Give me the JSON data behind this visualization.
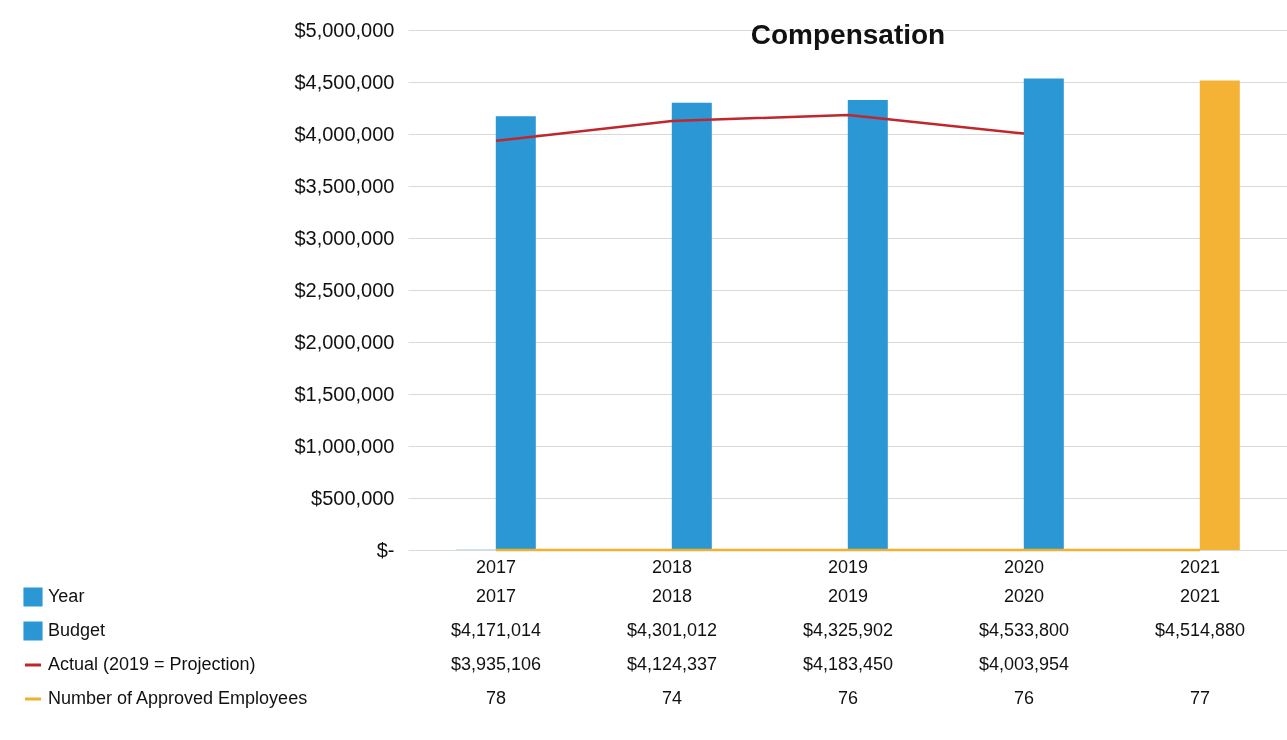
{
  "chart_data": {
    "type": "bar",
    "title": "Compensation",
    "categories": [
      "2017",
      "2018",
      "2019",
      "2020",
      "2021"
    ],
    "series": [
      {
        "name": "Year",
        "color": "#2b97d4",
        "values": [
          2017,
          2018,
          2019,
          2020,
          2021
        ],
        "value_labels": [
          "2017",
          "2018",
          "2019",
          "2020",
          "2021"
        ]
      },
      {
        "name": "Budget",
        "color": "#2b97d4",
        "colors": [
          "#2b97d4",
          "#2b97d4",
          "#2b97d4",
          "#2b97d4",
          "#f5b335"
        ],
        "values": [
          4171014,
          4301012,
          4325902,
          4533800,
          4514880
        ],
        "value_labels": [
          "$4,171,014",
          "$4,301,012",
          "$4,325,902",
          "$4,533,800",
          "$4,514,880"
        ]
      },
      {
        "name": "Actual (2019 = Projection)",
        "type": "line",
        "color": "#c0272d",
        "values": [
          3935106,
          4124337,
          4183450,
          4003954,
          null
        ],
        "value_labels": [
          "$3,935,106",
          "$4,124,337",
          "$4,183,450",
          "$4,003,954",
          null
        ]
      },
      {
        "name": "Number of Approved Employees",
        "type": "line",
        "color": "#f0b030",
        "values": [
          78,
          74,
          76,
          76,
          77
        ],
        "value_labels": [
          "78",
          "74",
          "76",
          "76",
          "77"
        ]
      }
    ],
    "ylim": [
      0,
      5000000
    ],
    "yticks": [
      {
        "value": 0,
        "label": "$-"
      },
      {
        "value": 500000,
        "label": "$500,000"
      },
      {
        "value": 1000000,
        "label": "$1,000,000"
      },
      {
        "value": 1500000,
        "label": "$1,500,000"
      },
      {
        "value": 2000000,
        "label": "$2,000,000"
      },
      {
        "value": 2500000,
        "label": "$2,500,000"
      },
      {
        "value": 3000000,
        "label": "$3,000,000"
      },
      {
        "value": 3500000,
        "label": "$3,500,000"
      },
      {
        "value": 4000000,
        "label": "$4,000,000"
      },
      {
        "value": 4500000,
        "label": "$4,500,000"
      },
      {
        "value": 5000000,
        "label": "$5,000,000"
      }
    ],
    "grid": "y",
    "legend": "bottom",
    "marker": "none",
    "line_style": "solid"
  }
}
